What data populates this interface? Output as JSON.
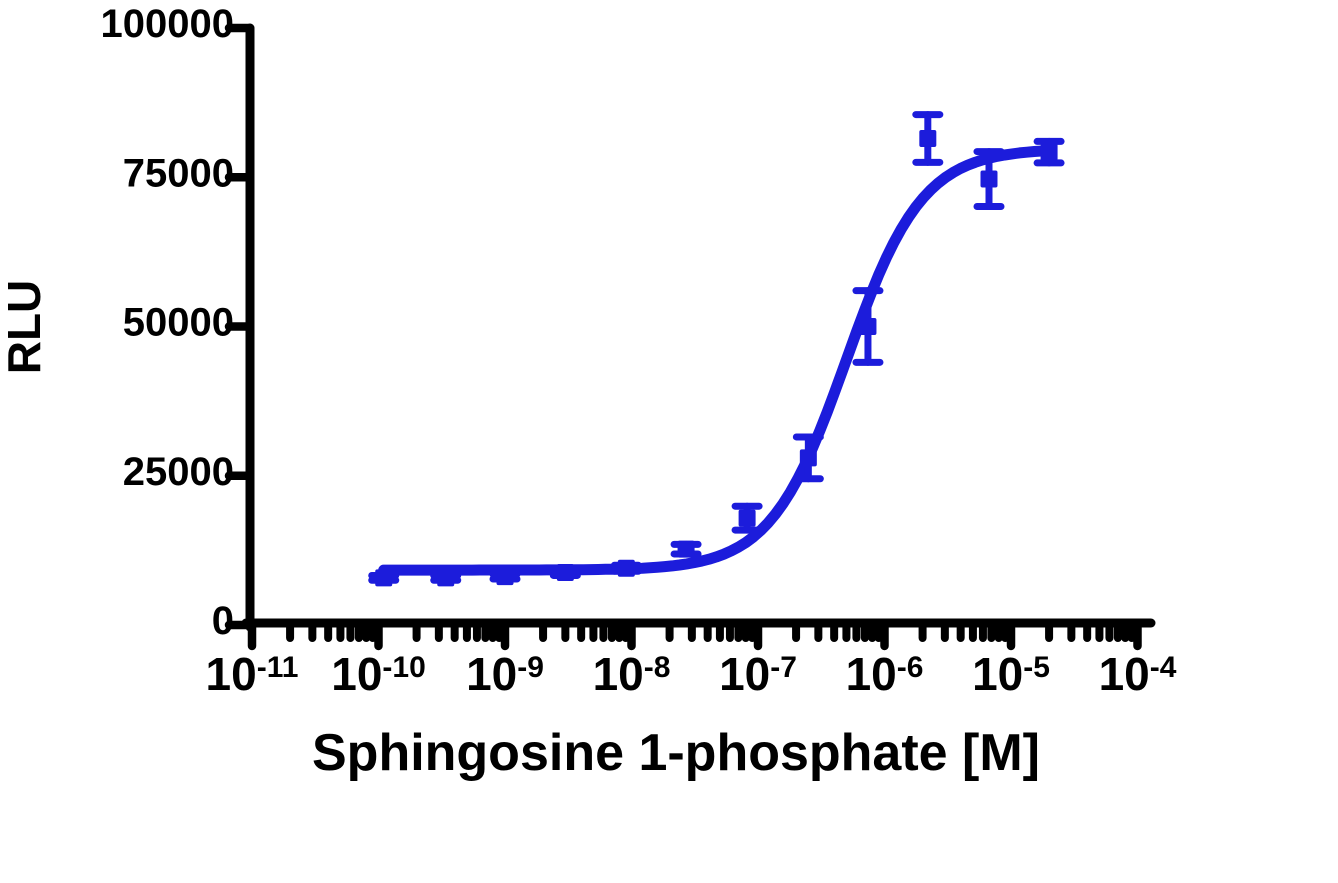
{
  "figure": {
    "background_color": "#ffffff",
    "axis_color": "#000000",
    "accent_color": "#1c1cdb"
  },
  "chart_data": {
    "type": "scatter",
    "subtype": "dose-response-curve",
    "title": "",
    "xlabel": "Sphingosine 1-phosphate [M]",
    "ylabel": "RLU",
    "x_scale": "log10",
    "x_range_log10": [
      -11,
      -4
    ],
    "x_tick_base": "10",
    "x_tick_exponents": [
      -11,
      -10,
      -9,
      -8,
      -7,
      -6,
      -5,
      -4
    ],
    "x_minor_tick_mantissas": [
      2,
      3,
      4,
      5,
      6,
      7,
      8,
      9
    ],
    "y_range": [
      0,
      100000
    ],
    "y_ticks": [
      0,
      25000,
      50000,
      75000,
      100000
    ],
    "grid": false,
    "legend": "none",
    "series": [
      {
        "name": "Sphingosine 1-phosphate",
        "color": "#1c1cdb",
        "marker": "square",
        "error_bars": "sem",
        "points": [
          {
            "conc_m": 1.1e-10,
            "rlu": 7900,
            "err": 400
          },
          {
            "conc_m": 3.4e-10,
            "rlu": 7900,
            "err": 400
          },
          {
            "conc_m": 1e-09,
            "rlu": 8100,
            "err": 400
          },
          {
            "conc_m": 3e-09,
            "rlu": 8800,
            "err": 500
          },
          {
            "conc_m": 9.1e-09,
            "rlu": 9500,
            "err": 500
          },
          {
            "conc_m": 2.7e-08,
            "rlu": 12700,
            "err": 800
          },
          {
            "conc_m": 8.2e-08,
            "rlu": 17900,
            "err": 2000
          },
          {
            "conc_m": 2.5e-07,
            "rlu": 28000,
            "err": 3500
          },
          {
            "conc_m": 7.4e-07,
            "rlu": 50000,
            "err": 6000
          },
          {
            "conc_m": 2.2e-06,
            "rlu": 81500,
            "err": 4000
          },
          {
            "conc_m": 6.7e-06,
            "rlu": 74700,
            "err": 4600
          },
          {
            "conc_m": 2e-05,
            "rlu": 79200,
            "err": 1800
          }
        ],
        "fit_curve": {
          "model": "4PL",
          "bottom": 9200,
          "top": 79800,
          "log_ec50": -6.3,
          "hill": 1.45
        }
      }
    ]
  }
}
